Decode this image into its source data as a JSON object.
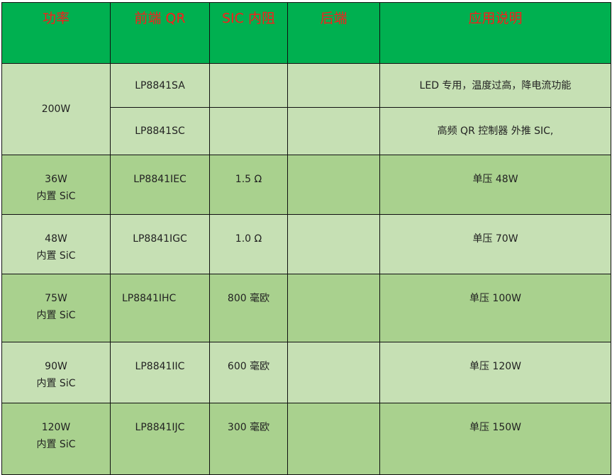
{
  "table": {
    "headers": [
      "功率",
      "前端 QR",
      "SIC 内阻",
      "后端",
      "应用说明"
    ],
    "rows": [
      {
        "power": "200W",
        "sub": [
          {
            "qr": "LP8841SA",
            "sic": "",
            "back": "",
            "note": "LED 专用，温度过高，降电流功能"
          },
          {
            "qr": "LP8841SC",
            "sic": "",
            "back": "",
            "note": "高频 QR 控制器  外推 SIC,"
          }
        ]
      },
      {
        "power": "36W",
        "power2": "内置 SiC",
        "qr": "LP8841IEC",
        "sic": "1.5 Ω",
        "back": "",
        "note": "单压 48W"
      },
      {
        "power": "48W",
        "power2": "内置 SiC",
        "qr": "LP8841IGC",
        "sic": "1.0 Ω",
        "back": "",
        "note": "单压  70W"
      },
      {
        "power": "75W",
        "power2": "内置 SiC",
        "qr": "LP8841IHC",
        "sic": "800 毫欧",
        "back": "",
        "note": "单压  100W"
      },
      {
        "power": "90W",
        "power2": "内置 SiC",
        "qr": "LP8841IIC",
        "sic": "600 毫欧",
        "back": "",
        "note": "单压  120W"
      },
      {
        "power": "120W",
        "power2": "内置 SiC",
        "qr": "LP8841IJC",
        "sic": "300 毫欧",
        "back": "",
        "note": "单压  150W"
      }
    ]
  },
  "colors": {
    "header_bg": "#00b050",
    "header_text": "#ff1a1a",
    "row_light": "#c6e0b4",
    "row_dark": "#a9d18e"
  }
}
